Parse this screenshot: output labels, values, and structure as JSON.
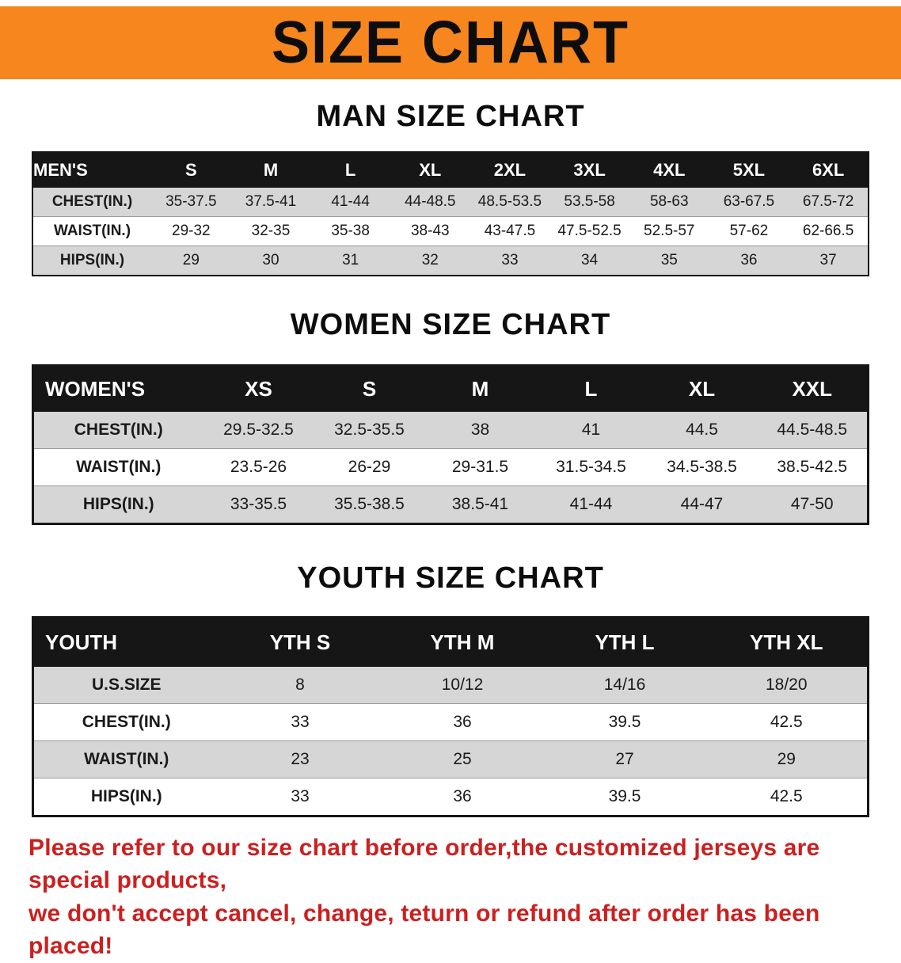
{
  "banner": {
    "title": "SIZE CHART",
    "bg_color": "#f6861d",
    "text_color": "#0d0d0d"
  },
  "sections": [
    {
      "id": "men",
      "heading": "MAN SIZE CHART",
      "table": {
        "header": [
          "MEN'S",
          "S",
          "M",
          "L",
          "XL",
          "2XL",
          "3XL",
          "4XL",
          "5XL",
          "6XL"
        ],
        "rows": [
          [
            "CHEST(IN.)",
            "35-37.5",
            "37.5-41",
            "41-44",
            "44-48.5",
            "48.5-53.5",
            "53.5-58",
            "58-63",
            "63-67.5",
            "67.5-72"
          ],
          [
            "WAIST(IN.)",
            "29-32",
            "32-35",
            "35-38",
            "38-43",
            "43-47.5",
            "47.5-52.5",
            "52.5-57",
            "57-62",
            "62-66.5"
          ],
          [
            "HIPS(IN.)",
            "29",
            "30",
            "31",
            "32",
            "33",
            "34",
            "35",
            "36",
            "37"
          ]
        ]
      }
    },
    {
      "id": "women",
      "heading": "WOMEN SIZE CHART",
      "table": {
        "header": [
          "WOMEN'S",
          "XS",
          "S",
          "M",
          "L",
          "XL",
          "XXL"
        ],
        "rows": [
          [
            "CHEST(IN.)",
            "29.5-32.5",
            "32.5-35.5",
            "38",
            "41",
            "44.5",
            "44.5-48.5"
          ],
          [
            "WAIST(IN.)",
            "23.5-26",
            "26-29",
            "29-31.5",
            "31.5-34.5",
            "34.5-38.5",
            "38.5-42.5"
          ],
          [
            "HIPS(IN.)",
            "33-35.5",
            "35.5-38.5",
            "38.5-41",
            "41-44",
            "44-47",
            "47-50"
          ]
        ]
      }
    },
    {
      "id": "youth",
      "heading": "YOUTH SIZE CHART",
      "table": {
        "header": [
          "YOUTH",
          "YTH S",
          "YTH M",
          "YTH L",
          "YTH XL"
        ],
        "rows": [
          [
            "U.S.SIZE",
            "8",
            "10/12",
            "14/16",
            "18/20"
          ],
          [
            "CHEST(IN.)",
            "33",
            "36",
            "39.5",
            "42.5"
          ],
          [
            "WAIST(IN.)",
            "23",
            "25",
            "27",
            "29"
          ],
          [
            "HIPS(IN.)",
            "33",
            "36",
            "39.5",
            "42.5"
          ]
        ]
      }
    }
  ],
  "footer": {
    "line1": "Please refer to our size chart before order,the customized jerseys are special products,",
    "line2": "we don't accept cancel, change, teturn or refund after order has been placed!",
    "text_color": "#cc2020"
  }
}
